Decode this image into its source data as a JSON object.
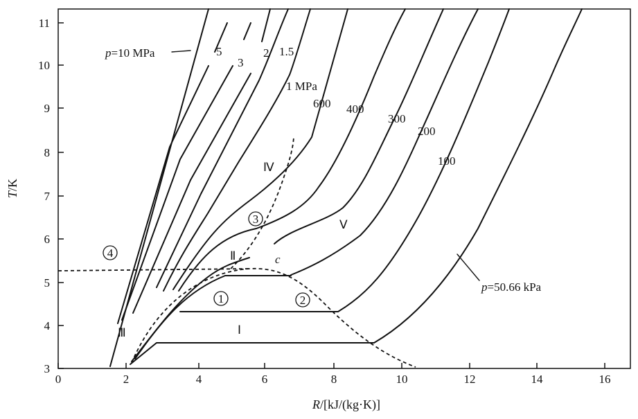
{
  "x_axis": {
    "label_italic": "R",
    "label_rest": "/[kJ/(kg·K)]",
    "ticks": [
      "0",
      "2",
      "4",
      "6",
      "8",
      "10",
      "12",
      "14",
      "16"
    ]
  },
  "y_axis": {
    "label_italic": "T",
    "label_rest": "/K",
    "ticks": [
      "3",
      "4",
      "5",
      "6",
      "7",
      "8",
      "9",
      "10",
      "11"
    ]
  },
  "isobar_labels": {
    "p10_italic": "p",
    "p10_rest": "=10 MPa",
    "p5": "5",
    "p3": "3",
    "p2": "2",
    "p1_5": "1.5",
    "p1": "1 MPa",
    "p600": "600",
    "p400": "400",
    "p300": "300",
    "p200": "200",
    "p100": "100",
    "p50_italic": "p",
    "p50_rest": "=50.66 kPa"
  },
  "region_labels": {
    "I": "Ⅰ",
    "II": "Ⅱ",
    "III": "Ⅲ",
    "IV": "Ⅳ",
    "V": "Ⅴ",
    "c": "c"
  },
  "point_labels": {
    "p1": "1",
    "p2": "2",
    "p3": "3",
    "p4": "4"
  }
}
